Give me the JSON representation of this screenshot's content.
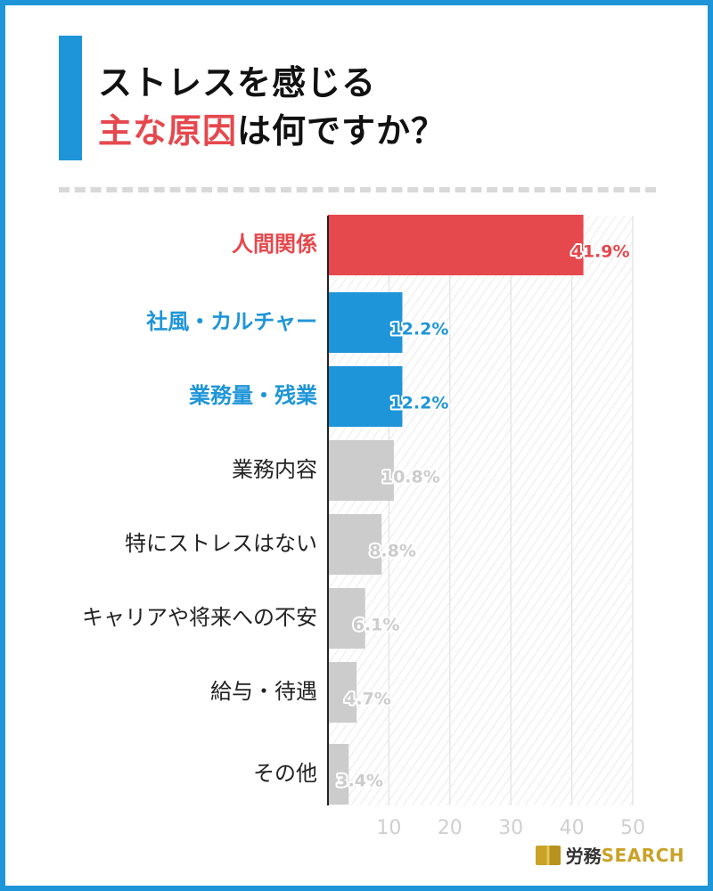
{
  "header": {
    "title_line1": "ストレスを感じる",
    "title_line2_highlight": "主な原因",
    "title_line2_rest": "は何ですか？"
  },
  "colors": {
    "frame": "#1e95d8",
    "highlight_red": "#e5484d",
    "highlight_blue": "#1e95d8",
    "default_bar": "#cccccc",
    "title_text": "#111111"
  },
  "chart_data": {
    "type": "bar",
    "orientation": "horizontal",
    "categories": [
      "人間関係",
      "社風・カルチャー",
      "業務量・残業",
      "業務内容",
      "特にストレスはない",
      "キャリアや将来への不安",
      "給与・待遇",
      "その他"
    ],
    "values": [
      41.9,
      12.2,
      12.2,
      10.8,
      8.8,
      6.1,
      4.7,
      3.4
    ],
    "value_labels": [
      "41.9%",
      "12.2%",
      "12.2%",
      "10.8%",
      "8.8%",
      "6.1%",
      "4.7%",
      "3.4%"
    ],
    "bar_colors": [
      "#e5484d",
      "#1e95d8",
      "#1e95d8",
      "#cccccc",
      "#cccccc",
      "#cccccc",
      "#cccccc",
      "#cccccc"
    ],
    "label_colors": [
      "#e5484d",
      "#1e95d8",
      "#1e95d8",
      "#222222",
      "#222222",
      "#222222",
      "#222222",
      "#222222"
    ],
    "value_label_colors": [
      "#e5484d",
      "#1e95d8",
      "#1e95d8",
      "#cccccc",
      "#cccccc",
      "#cccccc",
      "#cccccc",
      "#cccccc"
    ],
    "bold_labels": [
      true,
      true,
      true,
      false,
      false,
      false,
      false,
      false
    ],
    "xlim": [
      0,
      50
    ],
    "xticks": [
      10,
      20,
      30,
      40,
      50
    ],
    "grid": true
  },
  "logo": {
    "jp": "労務",
    "en": "SEARCH"
  }
}
